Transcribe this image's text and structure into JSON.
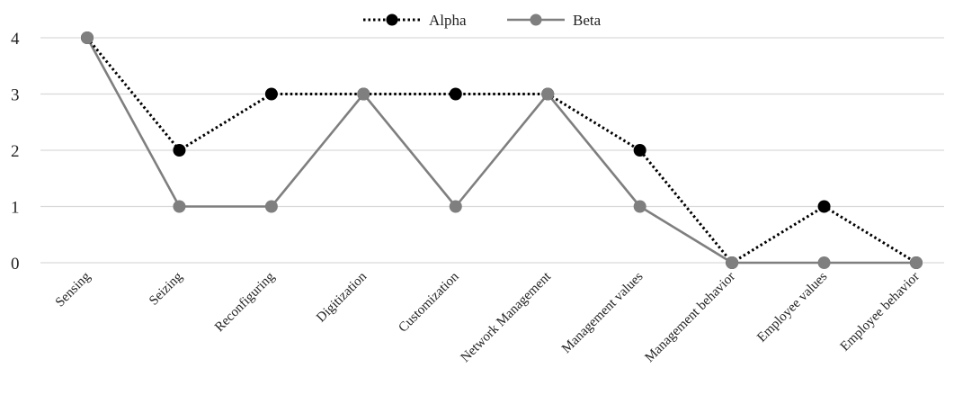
{
  "chart_data": {
    "type": "line",
    "categories": [
      "Sensing",
      "Seizing",
      "Reconfiguring",
      "Digitization",
      "Customization",
      "Network Management",
      "Management values",
      "Management behavior",
      "Employee values",
      "Employee behavior"
    ],
    "series": [
      {
        "name": "Alpha",
        "values": [
          4,
          2,
          3,
          3,
          3,
          3,
          2,
          0,
          1,
          0
        ],
        "color": "#000000",
        "line_style": "dotted",
        "marker_color": "#000000"
      },
      {
        "name": "Beta",
        "values": [
          4,
          1,
          1,
          3,
          1,
          3,
          1,
          0,
          0,
          0
        ],
        "color": "#7f7f7f",
        "line_style": "solid",
        "marker_color": "#7f7f7f"
      }
    ],
    "yticks": [
      "0",
      "1",
      "2",
      "3",
      "4"
    ],
    "ylim": [
      0,
      4
    ],
    "grid": true,
    "legend_position": "top-center",
    "xlabel": "",
    "ylabel": "",
    "title": ""
  }
}
